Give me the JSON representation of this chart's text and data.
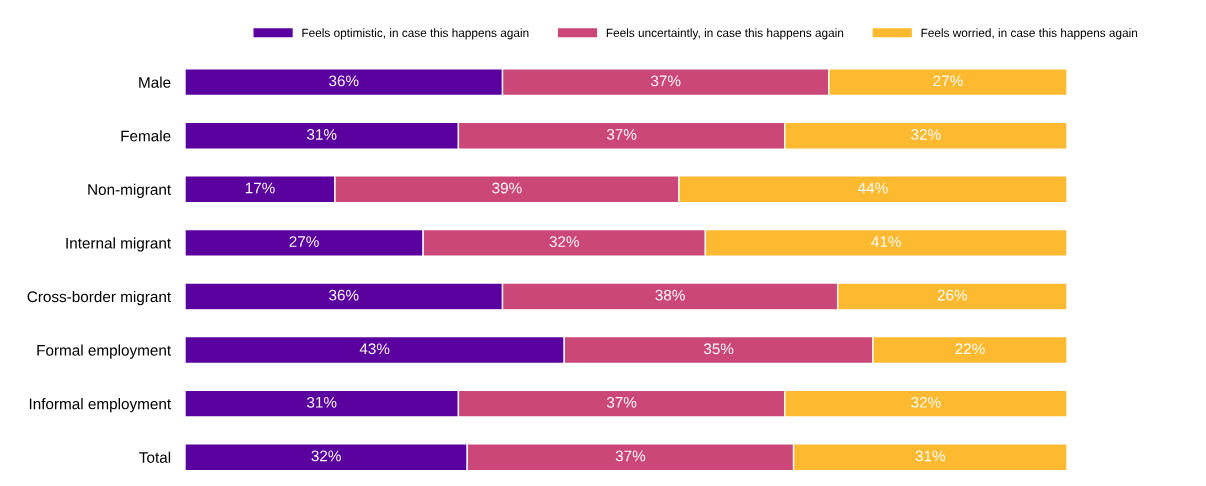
{
  "chart_data": {
    "type": "bar",
    "orientation": "horizontal",
    "stacked": true,
    "legend": "top",
    "grid": false,
    "categories": [
      "Male",
      "Female",
      "Non-migrant",
      "Internal migrant",
      "Cross-border migrant",
      "Formal employment",
      "Informal employment",
      "Total"
    ],
    "series": [
      {
        "name": "Feels optimistic, in case this happens again",
        "color": "#5a009f",
        "values": [
          36,
          31,
          17,
          27,
          36,
          43,
          31,
          32
        ],
        "value_labels": [
          "36%",
          "31%",
          "17%",
          "27%",
          "36%",
          "43%",
          "31%",
          "32%"
        ]
      },
      {
        "name": "Feels uncertaintly, in case this happens again",
        "color": "#cb4778",
        "values": [
          37,
          37,
          39,
          32,
          38,
          35,
          37,
          37
        ],
        "value_labels": [
          "37%",
          "37%",
          "39%",
          "32%",
          "38%",
          "35%",
          "37%",
          "37%"
        ]
      },
      {
        "name": "Feels worried, in case this happens again",
        "color": "#fdb92f",
        "values": [
          27,
          32,
          44,
          41,
          26,
          22,
          32,
          31
        ],
        "value_labels": [
          "27%",
          "32%",
          "44%",
          "41%",
          "26%",
          "22%",
          "32%",
          "31%"
        ]
      }
    ]
  }
}
